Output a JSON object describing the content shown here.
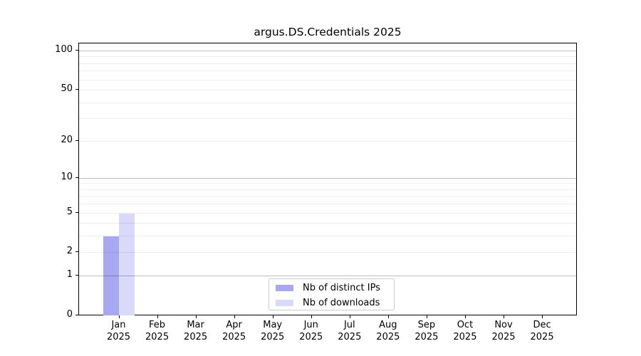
{
  "title": "argus.DS.Credentials 2025",
  "legend": {
    "items": [
      {
        "label": "Nb of distinct IPs",
        "color": "#a8a8f2"
      },
      {
        "label": "Nb of downloads",
        "color": "#d9d9f9"
      }
    ]
  },
  "chart_data": {
    "type": "bar",
    "title": "argus.DS.Credentials 2025",
    "categories": [
      "Jan",
      "Feb",
      "Mar",
      "Apr",
      "May",
      "Jun",
      "Jul",
      "Aug",
      "Sep",
      "Oct",
      "Nov",
      "Dec"
    ],
    "year_label": "2025",
    "series": [
      {
        "name": "Nb of distinct IPs",
        "color": "#a8a8f2",
        "values": [
          3,
          0,
          0,
          0,
          0,
          0,
          0,
          0,
          0,
          0,
          0,
          0
        ]
      },
      {
        "name": "Nb of downloads",
        "color": "#d9d9f9",
        "values": [
          5,
          0,
          0,
          0,
          0,
          0,
          0,
          0,
          0,
          0,
          0,
          0
        ]
      }
    ],
    "y_scale": "log10(1+v)",
    "ylim": [
      0,
      114.8
    ],
    "y_ticks_labeled": [
      0,
      1,
      2,
      5,
      10,
      20,
      50,
      100
    ],
    "y_gridlines_major": [
      1,
      10,
      100
    ],
    "y_gridlines_minor": [
      2,
      3,
      4,
      5,
      6,
      7,
      8,
      9,
      20,
      30,
      40,
      50,
      60,
      70,
      80,
      90
    ],
    "grid": true,
    "legend_position": "lower center"
  }
}
